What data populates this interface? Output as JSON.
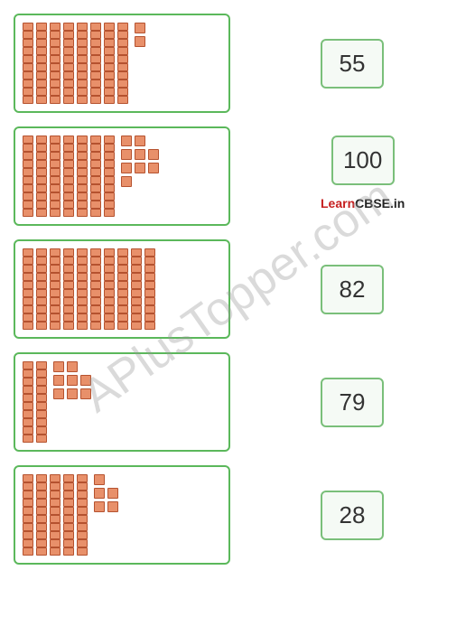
{
  "rows": [
    {
      "tens": 8,
      "ones": 2,
      "onesLayout": [
        [
          1
        ],
        [
          1
        ]
      ],
      "number": 55
    },
    {
      "tens": 7,
      "ones": 9,
      "onesLayout": [
        [
          1,
          1
        ],
        [
          1,
          1,
          1
        ],
        [
          1,
          1,
          1
        ],
        [
          1
        ]
      ],
      "number": 100,
      "showLogo": true
    },
    {
      "tens": 10,
      "ones": 0,
      "onesLayout": [],
      "number": 82
    },
    {
      "tens": 2,
      "ones": 8,
      "onesLayout": [
        [
          1,
          1
        ],
        [
          1,
          1,
          1
        ],
        [
          1,
          1,
          1
        ]
      ],
      "number": 79
    },
    {
      "tens": 5,
      "ones": 5,
      "onesLayout": [
        [
          1
        ],
        [
          1,
          1
        ],
        [
          1,
          1
        ]
      ],
      "number": 28
    }
  ],
  "logo": {
    "learn": "Learn",
    "cbse": "CBSE.in"
  },
  "watermark": "APlusTopper.com",
  "colors": {
    "border": "#5bb85b",
    "unitFill": "#e8906a",
    "unitBorder": "#b5522f",
    "numBoxBorder": "#7abf7a",
    "numBoxBg": "#f5faf5"
  }
}
